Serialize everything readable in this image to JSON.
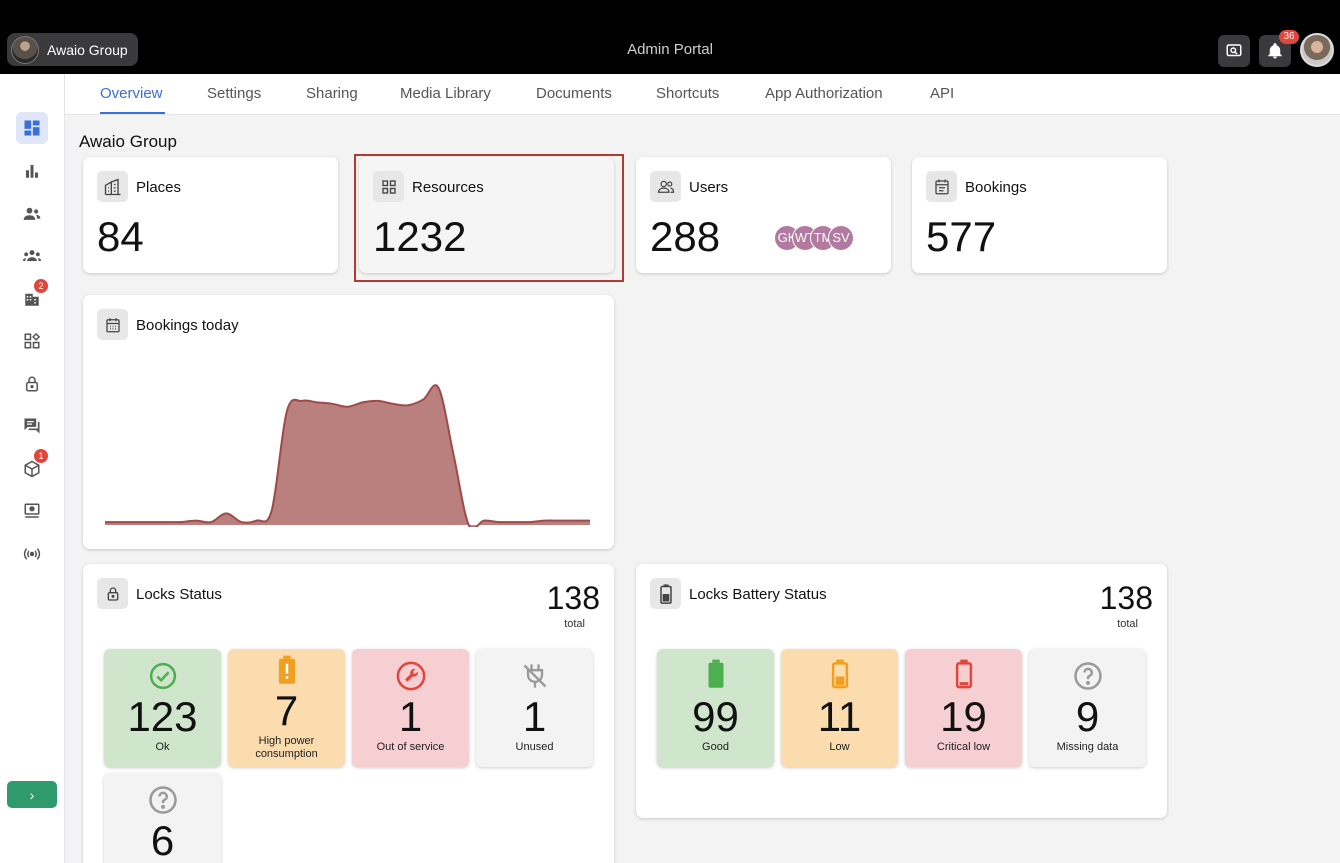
{
  "topbar": {
    "org_name": "Awaio Group",
    "title": "Admin Portal",
    "search_icon": "monitor-search-icon",
    "notifications_count": "36"
  },
  "sidebar": {
    "items": [
      {
        "icon": "dashboard-icon",
        "active": true,
        "badge": ""
      },
      {
        "icon": "bar-chart-icon",
        "badge": ""
      },
      {
        "icon": "users-icon",
        "badge": ""
      },
      {
        "icon": "groups-icon",
        "badge": ""
      },
      {
        "icon": "building-icon",
        "badge": "2"
      },
      {
        "icon": "widgets-icon",
        "badge": ""
      },
      {
        "icon": "lock-icon",
        "badge": ""
      },
      {
        "icon": "chat-icon",
        "badge": ""
      },
      {
        "icon": "cube-icon",
        "badge": "1"
      },
      {
        "icon": "kiosk-icon",
        "badge": ""
      },
      {
        "icon": "broadcast-icon",
        "badge": ""
      }
    ],
    "expand_label": "›"
  },
  "tabs": [
    "Overview",
    "Settings",
    "Sharing",
    "Media Library",
    "Documents",
    "Shortcuts",
    "App Authorization",
    "API"
  ],
  "page_title": "Awaio Group",
  "stats": {
    "places": {
      "label": "Places",
      "value": "84"
    },
    "resources": {
      "label": "Resources",
      "value": "1232"
    },
    "users": {
      "label": "Users",
      "value": "288",
      "avatars": [
        "GK",
        "WT",
        "TM",
        "SV"
      ]
    },
    "bookings": {
      "label": "Bookings",
      "value": "577"
    }
  },
  "bookings_today": {
    "label": "Bookings today",
    "chart_data": {
      "type": "area",
      "values": [
        2,
        2,
        2,
        2,
        2,
        2,
        3,
        2,
        8,
        2,
        3,
        10,
        78,
        85,
        84,
        83,
        81,
        84,
        85,
        83,
        82,
        86,
        94,
        48,
        0,
        3,
        2,
        2,
        2,
        3,
        3,
        3,
        3
      ],
      "color": "#9e4a48",
      "fill": "#a8605c",
      "ylim": [
        0,
        100
      ]
    }
  },
  "locks_status": {
    "label": "Locks Status",
    "total": "138",
    "total_label": "total",
    "tiles": [
      {
        "value": "123",
        "label": "Ok",
        "tone": "green",
        "icon": "check-circle-icon"
      },
      {
        "value": "7",
        "label": "High power consumption",
        "tone": "orange",
        "icon": "battery-alert-icon"
      },
      {
        "value": "1",
        "label": "Out of service",
        "tone": "red",
        "icon": "wrench-icon"
      },
      {
        "value": "1",
        "label": "Unused",
        "tone": "grey",
        "icon": "plug-off-icon"
      },
      {
        "value": "6",
        "label": "",
        "tone": "grey",
        "icon": "help-circle-icon"
      }
    ]
  },
  "battery_status": {
    "label": "Locks Battery Status",
    "total": "138",
    "total_label": "total",
    "tiles": [
      {
        "value": "99",
        "label": "Good",
        "tone": "green",
        "icon": "battery-full-icon"
      },
      {
        "value": "11",
        "label": "Low",
        "tone": "orange",
        "icon": "battery-low-icon"
      },
      {
        "value": "19",
        "label": "Critical low",
        "tone": "red",
        "icon": "battery-critical-icon"
      },
      {
        "value": "9",
        "label": "Missing data",
        "tone": "grey",
        "icon": "help-circle-icon"
      }
    ]
  },
  "colors": {
    "accent": "#3a6fd8",
    "ok": "#4caf50",
    "warn": "#f0a020",
    "error": "#e0463c",
    "highlight": "#b23a32"
  }
}
